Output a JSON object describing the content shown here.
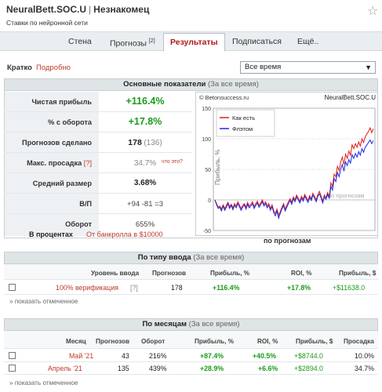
{
  "header": {
    "title": "NeuralBett.SOC.U",
    "separator": "|",
    "user": "Незнакомец",
    "subtitle": "Ставки по нейронной сети"
  },
  "tabs": [
    {
      "label": "Стена"
    },
    {
      "label": "Прогнозы",
      "badge": "[2]"
    },
    {
      "label": "Результаты"
    },
    {
      "label": "Подписаться"
    },
    {
      "label": "Ещё.."
    }
  ],
  "view": {
    "short": "Кратко",
    "detailed": "Подробно",
    "period_select": "Все время"
  },
  "main_section": {
    "title": "Основные показатели",
    "subtitle": "(За все время)"
  },
  "indicators": [
    {
      "label": "Чистая прибыль",
      "value": "+116.4%"
    },
    {
      "label": "% с оборота",
      "value": "+17.8%"
    },
    {
      "label": "Прогнозов сделано",
      "value": "178",
      "extra": "(136)"
    },
    {
      "label": "Макс. просадка",
      "label_extra": "[?]",
      "value": "34.7%",
      "note": "что это?"
    },
    {
      "label": "Средний размер",
      "value": "3.68%"
    },
    {
      "label": "В/П",
      "value": "+94 -81 =3"
    },
    {
      "label": "Оборот",
      "value": "655%"
    }
  ],
  "percent_note": {
    "label": "В процентах",
    "value": "От банкролла в $10000"
  },
  "chart_data": {
    "type": "line",
    "source": "© Betonsuccess.ru",
    "name": "NeuralBett.SOC.U",
    "xlabel": "по прогнозам",
    "ylabel": "Прибыль, %",
    "watermark": "по прогнозам",
    "yticks": [
      "150",
      "100",
      "50",
      "0",
      "-50"
    ],
    "ylim": [
      -50,
      150
    ],
    "legend_position": "top-left",
    "series": [
      {
        "name": "Как есть",
        "color": "#e01b1b",
        "values": [
          0,
          -6,
          -12,
          -10,
          -15,
          -8,
          -14,
          -9,
          -4,
          -11,
          -7,
          -13,
          -6,
          -10,
          -3,
          -8,
          -14,
          -9,
          -6,
          -12,
          -4,
          -10,
          -7,
          -3,
          -11,
          -6,
          -2,
          -9,
          -5,
          0,
          -7,
          -3,
          -10,
          -6,
          -14,
          -8,
          -18,
          -22,
          -15,
          -25,
          -19,
          -12,
          -6,
          -15,
          -9,
          -3,
          2,
          -4,
          5,
          0,
          8,
          3,
          -2,
          6,
          1,
          9,
          4,
          -1,
          7,
          2,
          11,
          6,
          0,
          9,
          14,
          6,
          -2,
          8,
          4,
          12,
          5,
          28,
          22,
          42,
          38,
          55,
          48,
          62,
          70,
          58,
          75,
          68,
          80,
          73,
          90,
          84,
          92,
          86,
          95,
          88,
          100,
          94,
          103,
          108,
          112,
          118,
          110,
          116.4
        ]
      },
      {
        "name": "Флэтом",
        "color": "#1a2be0",
        "values": [
          0,
          -8,
          -14,
          -12,
          -18,
          -10,
          -17,
          -12,
          -6,
          -14,
          -9,
          -16,
          -9,
          -13,
          -6,
          -11,
          -17,
          -12,
          -8,
          -15,
          -7,
          -13,
          -10,
          -6,
          -14,
          -9,
          -5,
          -12,
          -8,
          -3,
          -10,
          -6,
          -13,
          -9,
          -17,
          -11,
          -21,
          -26,
          -18,
          -30,
          -22,
          -15,
          -9,
          -18,
          -12,
          -6,
          -1,
          -7,
          2,
          -3,
          5,
          0,
          -5,
          3,
          -2,
          6,
          1,
          -4,
          4,
          -1,
          8,
          3,
          -3,
          6,
          10,
          3,
          -5,
          5,
          1,
          9,
          2,
          22,
          16,
          35,
          30,
          45,
          38,
          50,
          58,
          47,
          62,
          56,
          66,
          60,
          74,
          68,
          76,
          70,
          79,
          73,
          84,
          78,
          86,
          90,
          94,
          98,
          92,
          97
        ]
      }
    ]
  },
  "by_type": {
    "title": "По типу ввода",
    "subtitle": "(За все время)",
    "columns": [
      "Уровень ввода",
      "Прогнозов",
      "Прибыль, %",
      "ROI, %",
      "Прибыль, $"
    ],
    "rows": [
      {
        "level": "100% верификация",
        "help": "[?]",
        "count": "178",
        "profit_pct": "+116.4%",
        "roi": "+17.8%",
        "profit_usd": "+$11638.0"
      }
    ],
    "show_more": "» показать отмеченное"
  },
  "by_month": {
    "title": "По месяцам",
    "subtitle": "(За все время)",
    "columns": [
      "Месяц",
      "Прогнозов",
      "Оборот",
      "Прибыль, %",
      "ROI, %",
      "Прибыль, $",
      "Просадка"
    ],
    "rows": [
      {
        "month": "Май '21",
        "count": "43",
        "turnover": "216%",
        "profit_pct": "+87.4%",
        "roi": "+40.5%",
        "profit_usd": "+$8744.0",
        "drawdown": "10.0%"
      },
      {
        "month": "Апрель '21",
        "count": "135",
        "turnover": "439%",
        "profit_pct": "+28.9%",
        "roi": "+6.6%",
        "profit_usd": "+$2894.0",
        "drawdown": "34.7%"
      }
    ],
    "show_more": "» показать отмеченное"
  }
}
